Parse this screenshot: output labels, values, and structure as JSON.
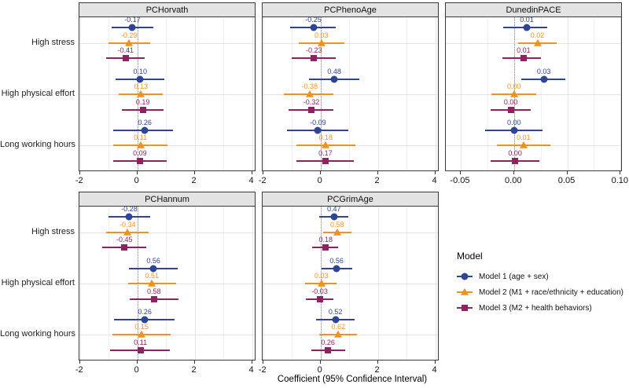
{
  "chart_data": {
    "type": "scatter",
    "subtype": "forest-plot-coefficients",
    "xlabel": "Coefficient (95% Confidence Interval)",
    "legend_title": "Model",
    "legend_position": "right-of-bottom-row",
    "grid": "on",
    "categories": [
      "High stress",
      "High physical effort",
      "Long working hours"
    ],
    "models": [
      {
        "name": "Model 1 (age + sex)",
        "color": "#2E4494",
        "marker": "circle"
      },
      {
        "name": "Model 2 (M1 + race/ethnicity + education)",
        "color": "#F3911E",
        "marker": "triangle"
      },
      {
        "name": "Model 3 (M2 + health behaviors)",
        "color": "#8F2260",
        "marker": "square"
      }
    ],
    "panels": [
      {
        "title": "PCHorvath",
        "row": 0,
        "col": 0,
        "xlim": [
          -2.02,
          4.15
        ],
        "zero_line": 0,
        "ticks": [
          {
            "v": -2,
            "label": "-2"
          },
          {
            "v": 0,
            "label": "0"
          },
          {
            "v": 2,
            "label": "2"
          },
          {
            "v": 4,
            "label": "4"
          }
        ],
        "minor_ticks": [
          -1,
          1,
          3
        ],
        "groups": [
          {
            "category": "High stress",
            "points": [
              {
                "model": 0,
                "est": -0.17,
                "lo": -0.9,
                "hi": 0.55,
                "label": "-0.17"
              },
              {
                "model": 1,
                "est": -0.29,
                "lo": -1.0,
                "hi": 0.45,
                "label": "-0.29"
              },
              {
                "model": 2,
                "est": -0.41,
                "lo": -1.1,
                "hi": 0.25,
                "label": "-0.41"
              }
            ]
          },
          {
            "category": "High physical effort",
            "points": [
              {
                "model": 0,
                "est": 0.1,
                "lo": -0.75,
                "hi": 0.95,
                "label": "0.10"
              },
              {
                "model": 1,
                "est": 0.13,
                "lo": -0.65,
                "hi": 0.9,
                "label": "0.13"
              },
              {
                "model": 2,
                "est": 0.19,
                "lo": -0.55,
                "hi": 0.92,
                "label": "0.19"
              }
            ]
          },
          {
            "category": "Long working hours",
            "points": [
              {
                "model": 0,
                "est": 0.26,
                "lo": -0.85,
                "hi": 1.25,
                "label": "0.26"
              },
              {
                "model": 1,
                "est": 0.11,
                "lo": -0.85,
                "hi": 1.05,
                "label": "0.11"
              },
              {
                "model": 2,
                "est": 0.09,
                "lo": -0.85,
                "hi": 1.02,
                "label": "0.09"
              }
            ]
          }
        ]
      },
      {
        "title": "PCPhenoAge",
        "row": 0,
        "col": 1,
        "xlim": [
          -2.02,
          4.15
        ],
        "zero_line": 0,
        "ticks": [
          {
            "v": -2,
            "label": "-2"
          },
          {
            "v": 0,
            "label": "0"
          },
          {
            "v": 2,
            "label": "2"
          },
          {
            "v": 4,
            "label": "4"
          }
        ],
        "minor_ticks": [
          -1,
          1,
          3
        ],
        "groups": [
          {
            "category": "High stress",
            "points": [
              {
                "model": 0,
                "est": -0.25,
                "lo": -1.05,
                "hi": 0.52,
                "label": "-0.25"
              },
              {
                "model": 1,
                "est": 0.03,
                "lo": -0.75,
                "hi": 0.84,
                "label": "0.03"
              },
              {
                "model": 2,
                "est": -0.23,
                "lo": -1.0,
                "hi": 0.52,
                "label": "-0.23"
              }
            ]
          },
          {
            "category": "High physical effort",
            "points": [
              {
                "model": 0,
                "est": 0.48,
                "lo": -0.4,
                "hi": 1.35,
                "label": "0.48"
              },
              {
                "model": 1,
                "est": -0.38,
                "lo": -1.28,
                "hi": 0.46,
                "label": "-0.38"
              },
              {
                "model": 2,
                "est": -0.32,
                "lo": -1.12,
                "hi": 0.45,
                "label": "-0.32"
              }
            ]
          },
          {
            "category": "Long working hours",
            "points": [
              {
                "model": 0,
                "est": -0.09,
                "lo": -1.17,
                "hi": 0.98,
                "label": "-0.09"
              },
              {
                "model": 1,
                "est": 0.18,
                "lo": -0.85,
                "hi": 1.22,
                "label": "0.18"
              },
              {
                "model": 2,
                "est": 0.17,
                "lo": -0.85,
                "hi": 1.16,
                "label": "0.17"
              }
            ]
          }
        ]
      },
      {
        "title": "DunedinPACE",
        "row": 0,
        "col": 2,
        "xlim": [
          -0.064,
          0.102
        ],
        "zero_line": 0,
        "ticks": [
          {
            "v": -0.05,
            "label": "-0.05"
          },
          {
            "v": 0,
            "label": "0.00"
          },
          {
            "v": 0.05,
            "label": "0.05"
          },
          {
            "v": 0.1,
            "label": "0.10"
          }
        ],
        "minor_ticks": [
          -0.025,
          0.025,
          0.075
        ],
        "groups": [
          {
            "category": "High stress",
            "points": [
              {
                "model": 0,
                "est": 0.012,
                "lo": -0.01,
                "hi": 0.031,
                "label": "0.01"
              },
              {
                "model": 1,
                "est": 0.022,
                "lo": 0.004,
                "hi": 0.04,
                "label": "0.02"
              },
              {
                "model": 2,
                "est": 0.009,
                "lo": -0.011,
                "hi": 0.025,
                "label": "0.01"
              }
            ]
          },
          {
            "category": "High physical effort",
            "points": [
              {
                "model": 0,
                "est": 0.028,
                "lo": 0.007,
                "hi": 0.048,
                "label": "0.03"
              },
              {
                "model": 1,
                "est": 0.0,
                "lo": -0.021,
                "hi": 0.021,
                "label": "0.00"
              },
              {
                "model": 2,
                "est": -0.003,
                "lo": -0.022,
                "hi": 0.016,
                "label": "0.00"
              }
            ]
          },
          {
            "category": "Long working hours",
            "points": [
              {
                "model": 0,
                "est": 0.0,
                "lo": -0.027,
                "hi": 0.027,
                "label": "0.00"
              },
              {
                "model": 1,
                "est": 0.009,
                "lo": -0.016,
                "hi": 0.034,
                "label": "0.01"
              },
              {
                "model": 2,
                "est": 0.001,
                "lo": -0.022,
                "hi": 0.024,
                "label": "0.00"
              }
            ]
          }
        ]
      },
      {
        "title": "PCHannum",
        "row": 1,
        "col": 0,
        "xlim": [
          -2.02,
          4.15
        ],
        "zero_line": 0,
        "ticks": [
          {
            "v": -2,
            "label": "-2"
          },
          {
            "v": 0,
            "label": "0"
          },
          {
            "v": 2,
            "label": "2"
          },
          {
            "v": 4,
            "label": "4"
          }
        ],
        "minor_ticks": [
          -1,
          1,
          3
        ],
        "groups": [
          {
            "category": "High stress",
            "points": [
              {
                "model": 0,
                "est": -0.28,
                "lo": -1.0,
                "hi": 0.45,
                "label": "-0.28"
              },
              {
                "model": 1,
                "est": -0.34,
                "lo": -1.1,
                "hi": 0.4,
                "label": "-0.34"
              },
              {
                "model": 2,
                "est": -0.45,
                "lo": -1.22,
                "hi": 0.3,
                "label": "-0.45"
              }
            ]
          },
          {
            "category": "High physical effort",
            "points": [
              {
                "model": 0,
                "est": 0.56,
                "lo": -0.3,
                "hi": 1.4,
                "label": "0.56"
              },
              {
                "model": 1,
                "est": 0.51,
                "lo": -0.33,
                "hi": 1.36,
                "label": "0.51"
              },
              {
                "model": 2,
                "est": 0.58,
                "lo": -0.27,
                "hi": 1.43,
                "label": "0.58"
              }
            ]
          },
          {
            "category": "Long working hours",
            "points": [
              {
                "model": 0,
                "est": 0.26,
                "lo": -0.8,
                "hi": 1.31,
                "label": "0.26"
              },
              {
                "model": 1,
                "est": 0.15,
                "lo": -0.86,
                "hi": 1.15,
                "label": "0.15"
              },
              {
                "model": 2,
                "est": 0.11,
                "lo": -0.95,
                "hi": 1.12,
                "label": "0.11"
              }
            ]
          }
        ]
      },
      {
        "title": "PCGrimAge",
        "row": 1,
        "col": 1,
        "xlim": [
          -2.02,
          4.15
        ],
        "zero_line": 0,
        "ticks": [
          {
            "v": -2,
            "label": "-2"
          },
          {
            "v": 0,
            "label": "0"
          },
          {
            "v": 2,
            "label": "2"
          },
          {
            "v": 4,
            "label": "4"
          }
        ],
        "minor_ticks": [
          -1,
          1,
          3
        ],
        "groups": [
          {
            "category": "High stress",
            "points": [
              {
                "model": 0,
                "est": 0.47,
                "lo": -0.05,
                "hi": 0.96,
                "label": "0.47"
              },
              {
                "model": 1,
                "est": 0.58,
                "lo": 0.08,
                "hi": 1.08,
                "label": "0.58"
              },
              {
                "model": 2,
                "est": 0.18,
                "lo": -0.28,
                "hi": 0.6,
                "label": "0.18"
              }
            ]
          },
          {
            "category": "High physical effort",
            "points": [
              {
                "model": 0,
                "est": 0.56,
                "lo": 0.03,
                "hi": 1.1,
                "label": "0.56"
              },
              {
                "model": 1,
                "est": 0.03,
                "lo": -0.53,
                "hi": 0.55,
                "label": "0.03"
              },
              {
                "model": 2,
                "est": -0.03,
                "lo": -0.5,
                "hi": 0.44,
                "label": "-0.03"
              }
            ]
          },
          {
            "category": "Long working hours",
            "points": [
              {
                "model": 0,
                "est": 0.52,
                "lo": -0.16,
                "hi": 1.2,
                "label": "0.52"
              },
              {
                "model": 1,
                "est": 0.62,
                "lo": -0.05,
                "hi": 1.26,
                "label": "0.62"
              },
              {
                "model": 2,
                "est": 0.26,
                "lo": -0.33,
                "hi": 0.85,
                "label": "0.26"
              }
            ]
          }
        ]
      }
    ]
  }
}
